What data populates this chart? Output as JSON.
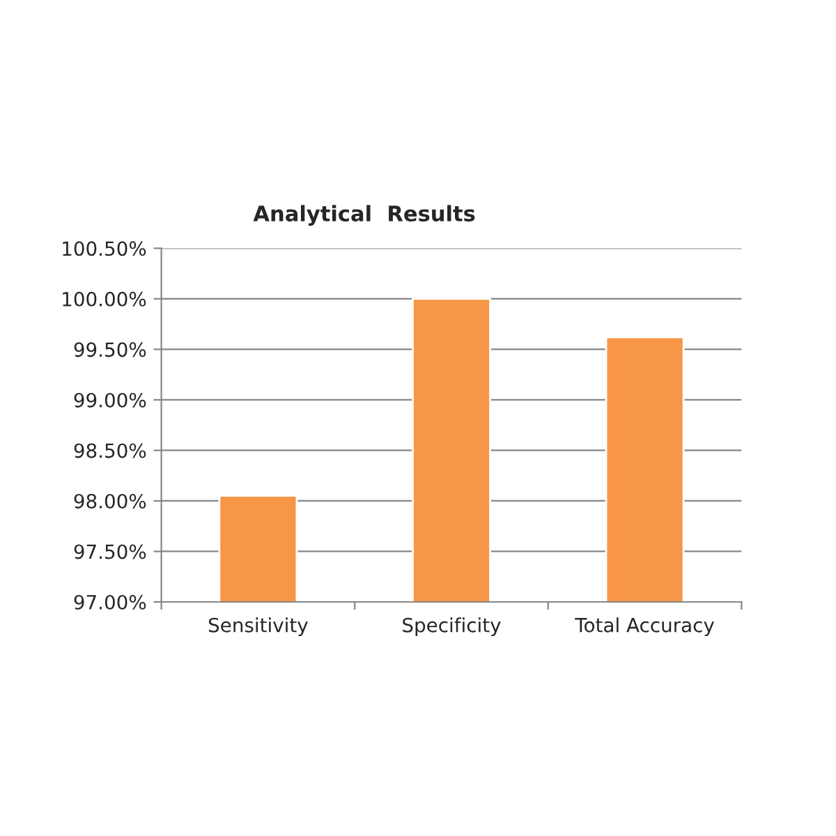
{
  "chart_data": {
    "type": "bar",
    "title": "Analytical  Results",
    "categories": [
      "Sensitivity",
      "Specificity",
      "Total Accuracy"
    ],
    "values": [
      98.05,
      100.0,
      99.62
    ],
    "color": "#f79646",
    "ylim": [
      97,
      100.5
    ],
    "yticks": [
      {
        "value": 97,
        "label": "97.00%"
      },
      {
        "value": 97.5,
        "label": "97.50%"
      },
      {
        "value": 98,
        "label": "98.00%"
      },
      {
        "value": 98.5,
        "label": "98.50%"
      },
      {
        "value": 99,
        "label": "99.00%"
      },
      {
        "value": 99.5,
        "label": "99.50%"
      },
      {
        "value": 100,
        "label": "100.00%"
      },
      {
        "value": 100.5,
        "label": "100.50%"
      }
    ],
    "grid": "y",
    "legend": false
  }
}
